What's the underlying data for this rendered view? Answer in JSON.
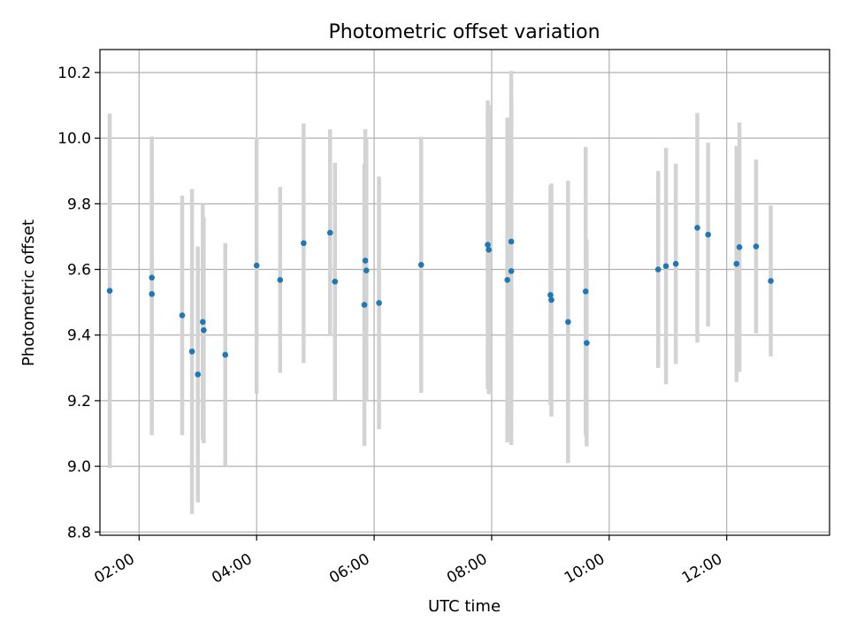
{
  "chart_data": {
    "type": "scatter",
    "title": "Photometric offset variation",
    "xlabel": "UTC time",
    "ylabel": "Photometric offset",
    "x_axis_kind": "time",
    "xlim": [
      "01:20",
      "13:45"
    ],
    "ylim": [
      8.79,
      10.27
    ],
    "x_ticks": [
      "02:00",
      "04:00",
      "06:00",
      "08:00",
      "10:00",
      "12:00"
    ],
    "y_ticks": [
      "8.8",
      "9.0",
      "9.2",
      "9.4",
      "9.6",
      "9.8",
      "10.0",
      "10.2"
    ],
    "grid": true,
    "colors": {
      "points": "#1f77b4",
      "error_bars": "#d3d3d3",
      "grid": "#b0b0b0"
    },
    "points": [
      {
        "t": "01:30",
        "y": 9.535,
        "lo": 8.995,
        "hi": 10.075
      },
      {
        "t": "02:13",
        "y": 9.575,
        "lo": 9.145,
        "hi": 10.005
      },
      {
        "t": "02:13",
        "y": 9.525,
        "lo": 9.095,
        "hi": 9.955
      },
      {
        "t": "02:44",
        "y": 9.46,
        "lo": 9.095,
        "hi": 9.825
      },
      {
        "t": "02:54",
        "y": 9.35,
        "lo": 8.855,
        "hi": 9.845
      },
      {
        "t": "03:00",
        "y": 9.28,
        "lo": 8.89,
        "hi": 9.67
      },
      {
        "t": "03:05",
        "y": 9.44,
        "lo": 9.08,
        "hi": 9.8
      },
      {
        "t": "03:06",
        "y": 9.415,
        "lo": 9.07,
        "hi": 9.76
      },
      {
        "t": "03:28",
        "y": 9.34,
        "lo": 9.0,
        "hi": 9.68
      },
      {
        "t": "04:00",
        "y": 9.612,
        "lo": 9.222,
        "hi": 10.002
      },
      {
        "t": "04:24",
        "y": 9.568,
        "lo": 9.285,
        "hi": 9.851
      },
      {
        "t": "04:48",
        "y": 9.68,
        "lo": 9.315,
        "hi": 10.045
      },
      {
        "t": "05:15",
        "y": 9.712,
        "lo": 9.397,
        "hi": 10.027
      },
      {
        "t": "05:20",
        "y": 9.563,
        "lo": 9.201,
        "hi": 9.925
      },
      {
        "t": "05:50",
        "y": 9.492,
        "lo": 9.062,
        "hi": 9.922
      },
      {
        "t": "05:51",
        "y": 9.627,
        "lo": 9.227,
        "hi": 10.027
      },
      {
        "t": "05:52",
        "y": 9.597,
        "lo": 9.197,
        "hi": 9.997
      },
      {
        "t": "06:05",
        "y": 9.498,
        "lo": 9.113,
        "hi": 9.883
      },
      {
        "t": "06:48",
        "y": 9.614,
        "lo": 9.224,
        "hi": 10.004
      },
      {
        "t": "07:56",
        "y": 9.675,
        "lo": 9.235,
        "hi": 10.115
      },
      {
        "t": "07:57",
        "y": 9.66,
        "lo": 9.22,
        "hi": 10.1
      },
      {
        "t": "08:16",
        "y": 9.568,
        "lo": 9.073,
        "hi": 10.063
      },
      {
        "t": "08:20",
        "y": 9.685,
        "lo": 9.165,
        "hi": 10.205
      },
      {
        "t": "08:20",
        "y": 9.595,
        "lo": 9.065,
        "hi": 10.125
      },
      {
        "t": "09:00",
        "y": 9.522,
        "lo": 9.187,
        "hi": 9.857
      },
      {
        "t": "09:01",
        "y": 9.507,
        "lo": 9.152,
        "hi": 9.862
      },
      {
        "t": "09:18",
        "y": 9.44,
        "lo": 9.01,
        "hi": 9.87
      },
      {
        "t": "09:36",
        "y": 9.533,
        "lo": 9.093,
        "hi": 9.973
      },
      {
        "t": "09:37",
        "y": 9.376,
        "lo": 9.061,
        "hi": 9.691
      },
      {
        "t": "10:50",
        "y": 9.6,
        "lo": 9.3,
        "hi": 9.9
      },
      {
        "t": "10:58",
        "y": 9.61,
        "lo": 9.25,
        "hi": 9.97
      },
      {
        "t": "11:08",
        "y": 9.617,
        "lo": 9.312,
        "hi": 9.922
      },
      {
        "t": "11:30",
        "y": 9.727,
        "lo": 9.377,
        "hi": 10.077
      },
      {
        "t": "11:41",
        "y": 9.706,
        "lo": 9.426,
        "hi": 9.986
      },
      {
        "t": "12:10",
        "y": 9.617,
        "lo": 9.257,
        "hi": 9.977
      },
      {
        "t": "12:13",
        "y": 9.668,
        "lo": 9.288,
        "hi": 10.048
      },
      {
        "t": "12:30",
        "y": 9.67,
        "lo": 9.405,
        "hi": 9.935
      },
      {
        "t": "12:45",
        "y": 9.565,
        "lo": 9.335,
        "hi": 9.795
      }
    ]
  }
}
